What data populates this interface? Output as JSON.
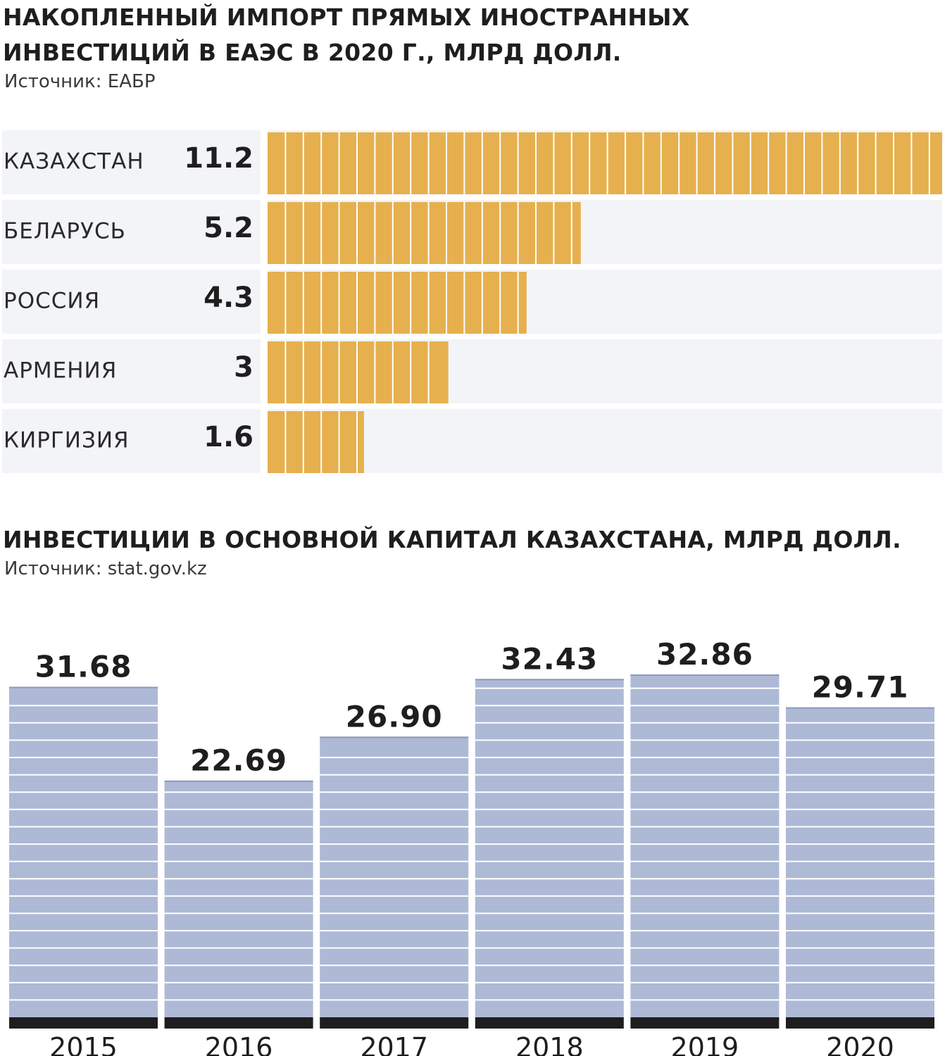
{
  "chart_data": [
    {
      "type": "bar",
      "orientation": "horizontal",
      "title": "НАКОПЛЕННЫЙ ИМПОРТ ПРЯМЫХ ИНОСТРАННЫХ ИНВЕСТИЦИЙ В ЕАЭС В 2020 Г., МЛРД ДОЛЛ.",
      "title_lines": [
        "НАКОПЛЕННЫЙ ИМПОРТ ПРЯМЫХ ИНОСТРАННЫХ",
        "ИНВЕСТИЦИЙ В ЕАЭС В 2020 Г., МЛРД ДОЛЛ."
      ],
      "source": "Источник: ЕАБР",
      "categories": [
        "КАЗАХСТАН",
        "БЕЛАРУСЬ",
        "РОССИЯ",
        "АРМЕНИЯ",
        "КИРГИЗИЯ"
      ],
      "values": [
        11.2,
        5.2,
        4.3,
        3,
        1.6
      ],
      "value_labels": [
        "11.2",
        "5.2",
        "4.3",
        "3",
        "1.6"
      ],
      "xlim": [
        0,
        11.2
      ],
      "grid": false,
      "colors": {
        "bar": "#e6b04e",
        "row_band": "#f3f4f8"
      }
    },
    {
      "type": "bar",
      "orientation": "vertical",
      "title": "ИНВЕСТИЦИИ В ОСНОВНОЙ КАПИТАЛ КАЗАХСТАНА, МЛРД ДОЛЛ.",
      "source": "Источник: stat.gov.kz",
      "categories": [
        "2015",
        "2016",
        "2017",
        "2018",
        "2019",
        "2020"
      ],
      "values": [
        31.68,
        22.69,
        26.9,
        32.43,
        32.86,
        29.71
      ],
      "value_labels": [
        "31.68",
        "22.69",
        "26.90",
        "32.43",
        "32.86",
        "29.71"
      ],
      "ylim": [
        0,
        32.86
      ],
      "grid": false,
      "colors": {
        "bar": "#aeb9d6",
        "baseline": "#1e1e1e"
      }
    }
  ]
}
